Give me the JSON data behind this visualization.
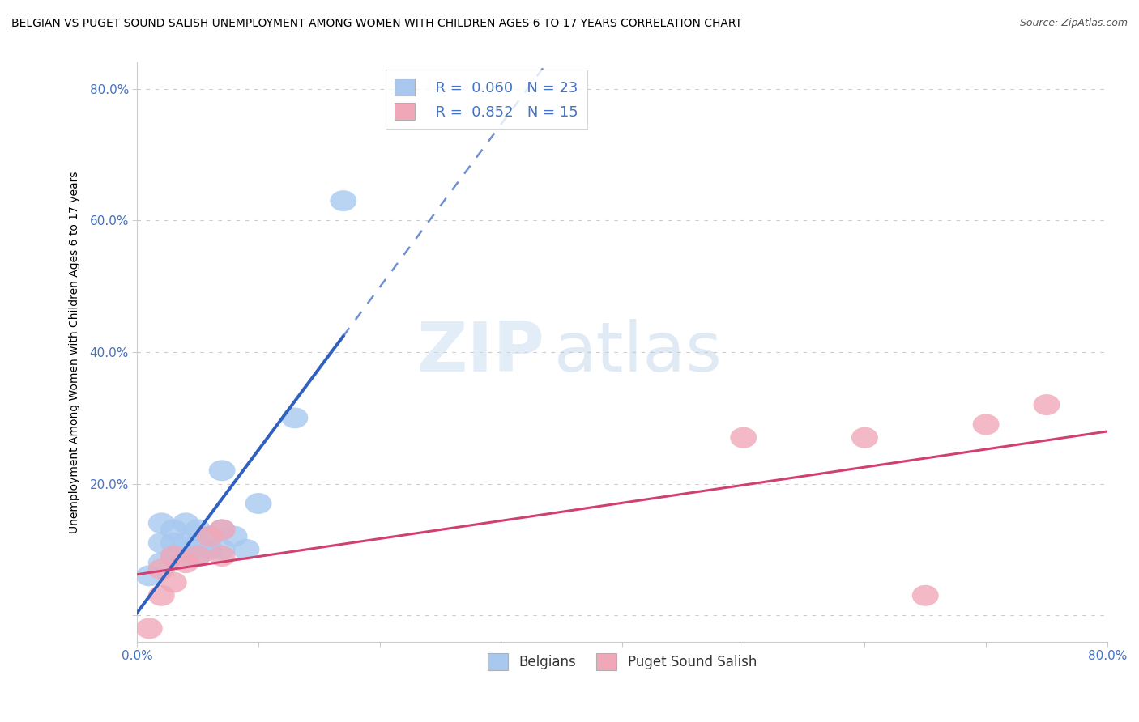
{
  "title": "BELGIAN VS PUGET SOUND SALISH UNEMPLOYMENT AMONG WOMEN WITH CHILDREN AGES 6 TO 17 YEARS CORRELATION CHART",
  "source": "Source: ZipAtlas.com",
  "ylabel": "Unemployment Among Women with Children Ages 6 to 17 years",
  "xlabel": "",
  "xlim": [
    0.0,
    0.8
  ],
  "ylim": [
    -0.04,
    0.84
  ],
  "xticks": [
    0.0,
    0.1,
    0.2,
    0.3,
    0.4,
    0.5,
    0.6,
    0.7,
    0.8
  ],
  "xticklabels": [
    "0.0%",
    "",
    "",
    "",
    "",
    "",
    "",
    "",
    "80.0%"
  ],
  "yticks": [
    0.0,
    0.2,
    0.4,
    0.6,
    0.8
  ],
  "yticklabels": [
    "",
    "20.0%",
    "40.0%",
    "60.0%",
    "80.0%"
  ],
  "belgian_color": "#a8c8f0",
  "salish_color": "#f0a8b8",
  "belgian_line_color": "#3060c0",
  "salish_line_color": "#d04070",
  "belgian_R": 0.06,
  "belgian_N": 23,
  "salish_R": 0.852,
  "salish_N": 15,
  "legend_label_belgian": "Belgians",
  "legend_label_salish": "Puget Sound Salish",
  "watermark_zip": "ZIP",
  "watermark_atlas": "atlas",
  "belgian_x": [
    0.01,
    0.02,
    0.02,
    0.02,
    0.03,
    0.03,
    0.03,
    0.04,
    0.04,
    0.04,
    0.05,
    0.05,
    0.05,
    0.06,
    0.06,
    0.07,
    0.07,
    0.07,
    0.08,
    0.09,
    0.1,
    0.13,
    0.17
  ],
  "belgian_y": [
    0.06,
    0.08,
    0.11,
    0.14,
    0.09,
    0.11,
    0.13,
    0.09,
    0.11,
    0.14,
    0.09,
    0.11,
    0.13,
    0.1,
    0.12,
    0.1,
    0.13,
    0.22,
    0.12,
    0.1,
    0.17,
    0.3,
    0.63
  ],
  "salish_x": [
    0.01,
    0.02,
    0.02,
    0.03,
    0.03,
    0.04,
    0.05,
    0.06,
    0.07,
    0.07,
    0.5,
    0.6,
    0.65,
    0.7,
    0.75
  ],
  "salish_y": [
    -0.02,
    0.03,
    0.07,
    0.05,
    0.09,
    0.08,
    0.09,
    0.12,
    0.09,
    0.13,
    0.27,
    0.27,
    0.03,
    0.29,
    0.32
  ],
  "background_color": "#ffffff",
  "grid_color": "#cccccc",
  "title_color": "#000000",
  "axis_label_color": "#000000",
  "tick_label_color": "#4472c4",
  "legend_r_color": "#4472c4"
}
